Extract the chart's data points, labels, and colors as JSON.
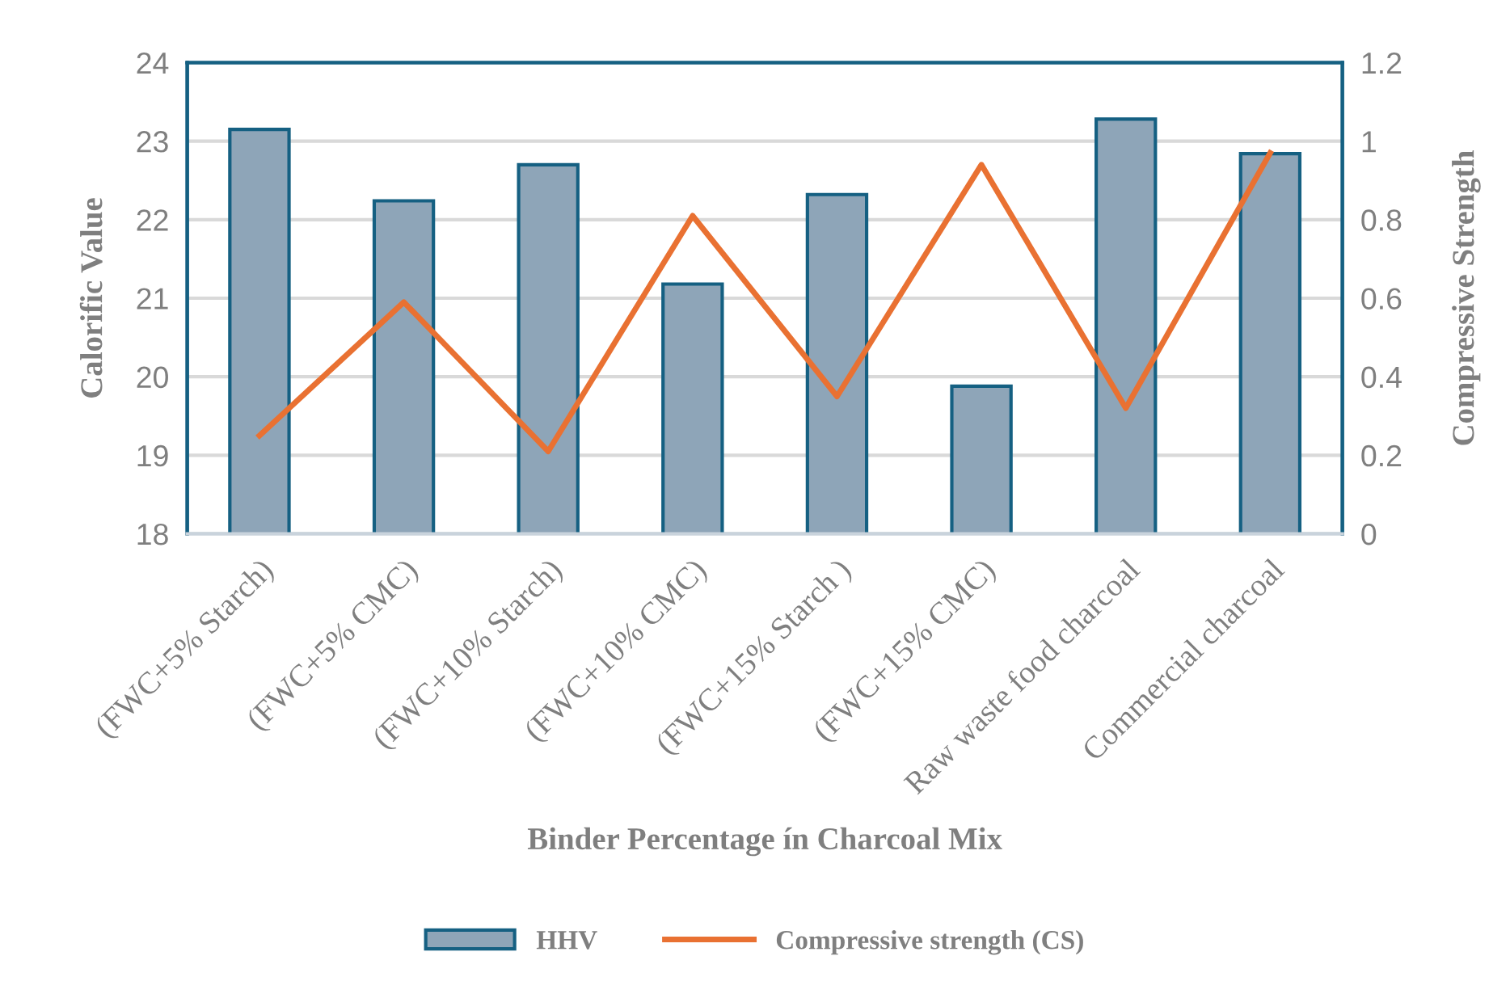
{
  "chart_data": {
    "type": "bar",
    "xlabel": "Binder Percentage ín Charcoal Mix",
    "ylabel": "Calorific Value",
    "y2label": "Compressive Strength",
    "categories": [
      "(FWC+5% Starch)",
      "(FWC+5% CMC)",
      "(FWC+10% Starch)",
      "(FWC+10% CMC)",
      "(FWC+15% Starch )",
      "(FWC+15% CMC)",
      "Raw waste food charcoal",
      "Commercial charcoal"
    ],
    "series": [
      {
        "name": "HHV",
        "color": "#8ea5b8",
        "values": [
          23.15,
          22.24,
          22.7,
          21.18,
          22.32,
          19.88,
          23.28,
          22.84
        ]
      },
      {
        "name": "Compressive strength (CS)",
        "type": "line",
        "axis": "y2",
        "color": "#e97132",
        "values": [
          0.25,
          0.59,
          0.21,
          0.81,
          0.35,
          0.94,
          0.32,
          0.97
        ]
      }
    ],
    "ylim": [
      18,
      24
    ],
    "yticks": [
      18,
      19,
      20,
      21,
      22,
      23,
      24
    ],
    "y2lim": [
      0,
      1.2
    ],
    "y2ticks": [
      0,
      0.2,
      0.4,
      0.6,
      0.8,
      1,
      1.2
    ],
    "grid": "y",
    "legend": "bottom"
  }
}
